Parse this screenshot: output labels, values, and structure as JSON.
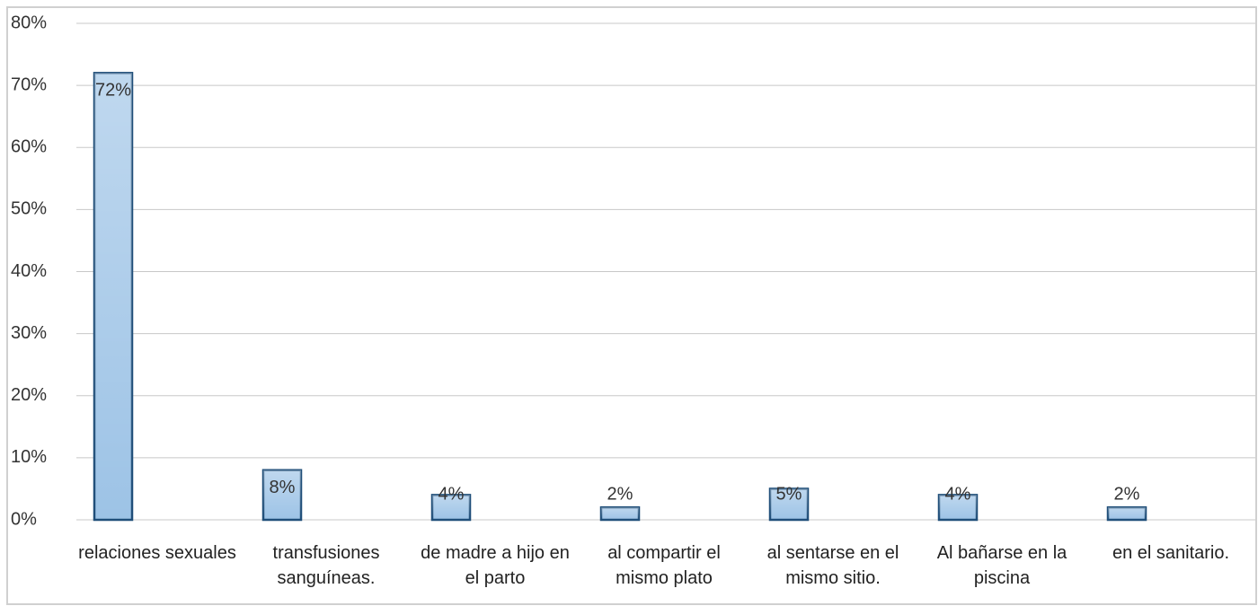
{
  "chart_data": {
    "type": "bar",
    "categories": [
      "relaciones sexuales",
      "transfusiones sanguíneas.",
      "de madre a hijo en el parto",
      "al compartir el mismo plato",
      "al sentarse en el mismo sitio.",
      "Al bañarse en la piscina",
      "en el sanitario."
    ],
    "values": [
      72,
      8,
      4,
      2,
      5,
      4,
      2
    ],
    "value_labels": [
      "72%",
      "8%",
      "4%",
      "2%",
      "5%",
      "4%",
      "2%"
    ],
    "color": "#9dc3e6",
    "edge_color": "#1f4e79",
    "ylim": [
      0,
      80
    ],
    "yticks": [
      {
        "value": 0,
        "label": "0%"
      },
      {
        "value": 10,
        "label": "10%"
      },
      {
        "value": 20,
        "label": "20%"
      },
      {
        "value": 30,
        "label": "30%"
      },
      {
        "value": 40,
        "label": "40%"
      },
      {
        "value": 50,
        "label": "50%"
      },
      {
        "value": 60,
        "label": "60%"
      },
      {
        "value": 70,
        "label": "70%"
      },
      {
        "value": 80,
        "label": "80%"
      }
    ],
    "grid": true
  }
}
